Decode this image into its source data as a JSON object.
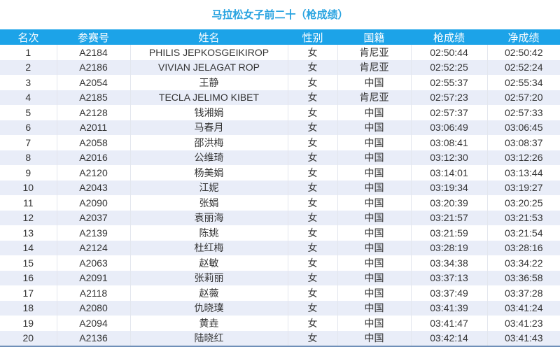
{
  "title": "马拉松女子前二十（枪成绩）",
  "colors": {
    "header_bg": "#1ca3e8",
    "title": "#29a3e0",
    "alt_row": "#e9edf8"
  },
  "headers": [
    "名次",
    "参赛号",
    "姓名",
    "性别",
    "国籍",
    "枪成绩",
    "净成绩"
  ],
  "rows": [
    [
      "1",
      "A2184",
      "PHILIS JEPKOSGEIKIROP",
      "女",
      "肯尼亚",
      "02:50:44",
      "02:50:42"
    ],
    [
      "2",
      "A2186",
      "VIVIAN JELAGAT ROP",
      "女",
      "肯尼亚",
      "02:52:25",
      "02:52:24"
    ],
    [
      "3",
      "A2054",
      "王静",
      "女",
      "中国",
      "02:55:37",
      "02:55:34"
    ],
    [
      "4",
      "A2185",
      "TECLA JELIMO KIBET",
      "女",
      "肯尼亚",
      "02:57:23",
      "02:57:20"
    ],
    [
      "5",
      "A2128",
      "钱湘娟",
      "女",
      "中国",
      "02:57:37",
      "02:57:33"
    ],
    [
      "6",
      "A2011",
      "马春月",
      "女",
      "中国",
      "03:06:49",
      "03:06:45"
    ],
    [
      "7",
      "A2058",
      "邵洪梅",
      "女",
      "中国",
      "03:08:41",
      "03:08:37"
    ],
    [
      "8",
      "A2016",
      "公维琦",
      "女",
      "中国",
      "03:12:30",
      "03:12:26"
    ],
    [
      "9",
      "A2120",
      "杨美娟",
      "女",
      "中国",
      "03:14:01",
      "03:13:44"
    ],
    [
      "10",
      "A2043",
      "江妮",
      "女",
      "中国",
      "03:19:34",
      "03:19:27"
    ],
    [
      "11",
      "A2090",
      "张娟",
      "女",
      "中国",
      "03:20:39",
      "03:20:25"
    ],
    [
      "12",
      "A2037",
      "袁丽海",
      "女",
      "中国",
      "03:21:57",
      "03:21:53"
    ],
    [
      "13",
      "A2139",
      "陈姚",
      "女",
      "中国",
      "03:21:59",
      "03:21:54"
    ],
    [
      "14",
      "A2124",
      "杜红梅",
      "女",
      "中国",
      "03:28:19",
      "03:28:16"
    ],
    [
      "15",
      "A2063",
      "赵敏",
      "女",
      "中国",
      "03:34:38",
      "03:34:22"
    ],
    [
      "16",
      "A2091",
      "张莉丽",
      "女",
      "中国",
      "03:37:13",
      "03:36:58"
    ],
    [
      "17",
      "A2118",
      "赵薇",
      "女",
      "中国",
      "03:37:49",
      "03:37:28"
    ],
    [
      "18",
      "A2080",
      "仇晓璞",
      "女",
      "中国",
      "03:41:39",
      "03:41:24"
    ],
    [
      "19",
      "A2094",
      "黄垚",
      "女",
      "中国",
      "03:41:47",
      "03:41:23"
    ],
    [
      "20",
      "A2136",
      "陆晓红",
      "女",
      "中国",
      "03:42:14",
      "03:41:43"
    ]
  ]
}
